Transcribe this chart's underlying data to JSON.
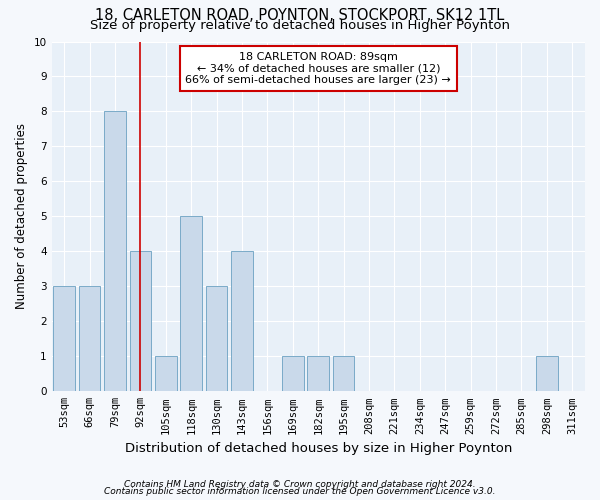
{
  "title": "18, CARLETON ROAD, POYNTON, STOCKPORT, SK12 1TL",
  "subtitle": "Size of property relative to detached houses in Higher Poynton",
  "xlabel": "Distribution of detached houses by size in Higher Poynton",
  "ylabel": "Number of detached properties",
  "footnote1": "Contains HM Land Registry data © Crown copyright and database right 2024.",
  "footnote2": "Contains public sector information licensed under the Open Government Licence v3.0.",
  "categories": [
    "53sqm",
    "66sqm",
    "79sqm",
    "92sqm",
    "105sqm",
    "118sqm",
    "130sqm",
    "143sqm",
    "156sqm",
    "169sqm",
    "182sqm",
    "195sqm",
    "208sqm",
    "221sqm",
    "234sqm",
    "247sqm",
    "259sqm",
    "272sqm",
    "285sqm",
    "298sqm",
    "311sqm"
  ],
  "values": [
    3,
    3,
    8,
    4,
    1,
    5,
    3,
    4,
    0,
    1,
    1,
    1,
    0,
    0,
    0,
    0,
    0,
    0,
    0,
    1,
    0
  ],
  "bar_color": "#c9d9ea",
  "bar_edge_color": "#7aaac8",
  "highlight_bar_index": 3,
  "highlight_line_color": "#cc0000",
  "annotation_line1": "18 CARLETON ROAD: 89sqm",
  "annotation_line2": "← 34% of detached houses are smaller (12)",
  "annotation_line3": "66% of semi-detached houses are larger (23) →",
  "annotation_box_color": "#cc0000",
  "ylim": [
    0,
    10
  ],
  "yticks": [
    0,
    1,
    2,
    3,
    4,
    5,
    6,
    7,
    8,
    9,
    10
  ],
  "fig_bg_color": "#f5f8fc",
  "plot_bg_color": "#e8f0f8",
  "grid_color": "#ffffff",
  "title_fontsize": 10.5,
  "subtitle_fontsize": 9.5,
  "xlabel_fontsize": 9.5,
  "ylabel_fontsize": 8.5,
  "tick_fontsize": 7.5,
  "footnote_fontsize": 6.5
}
